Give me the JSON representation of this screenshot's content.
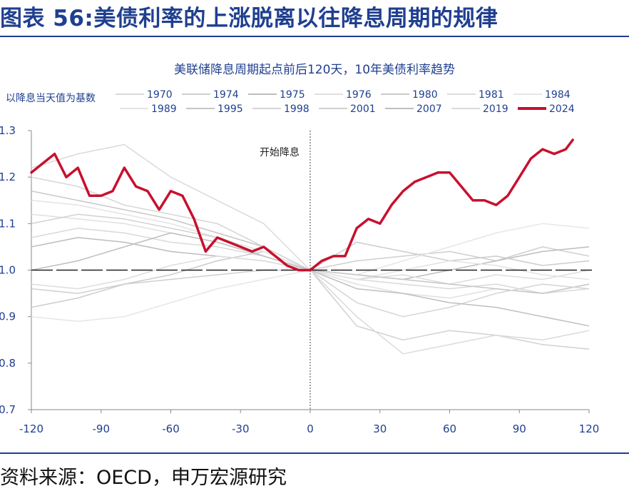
{
  "figure": {
    "title": "图表 56:美债利率的上涨脱离以往降息周期的规律",
    "source": "资料来源：OECD，申万宏源研究"
  },
  "colors": {
    "title_blue": "#1f3f8f",
    "axis_text": "#1f3f8f",
    "highlight": "#c8102e",
    "history": "#d2d2d2"
  },
  "chart_data": {
    "type": "line",
    "title": "美联储降息周期起点前后120天，10年美债利率趋势",
    "legend_note": "以降息当天值为基数",
    "annotation": "开始降息",
    "xlabel": "",
    "ylabel": "",
    "xlim": [
      -120,
      120
    ],
    "ylim": [
      0.7,
      1.3
    ],
    "xticks": [
      -120,
      -90,
      -60,
      -30,
      0,
      30,
      60,
      90,
      120
    ],
    "yticks": [
      0.7,
      0.8,
      0.9,
      1.0,
      1.1,
      1.2,
      1.3
    ],
    "xtick_labels": [
      "-120",
      "-90",
      "-60",
      "-30",
      "0",
      "30",
      "60",
      "90",
      "120"
    ],
    "ytick_labels": [
      "0.7",
      "0.8",
      "0.9",
      "1.0",
      "1.1",
      "1.2",
      "1.3"
    ],
    "baseline": 1.0,
    "series": [
      {
        "name": "1970",
        "color": "#d9d9d9",
        "x": [
          -120,
          -100,
          -80,
          -60,
          -40,
          -20,
          0,
          20,
          40,
          60,
          80,
          100,
          120
        ],
        "values": [
          1.07,
          1.09,
          1.08,
          1.06,
          1.05,
          1.03,
          1.0,
          0.98,
          0.97,
          0.96,
          0.97,
          0.95,
          0.96
        ]
      },
      {
        "name": "1974",
        "color": "#cfcfcf",
        "x": [
          -120,
          -100,
          -80,
          -60,
          -40,
          -20,
          0,
          20,
          40,
          60,
          80,
          100,
          120
        ],
        "values": [
          0.96,
          0.95,
          0.97,
          0.98,
          0.99,
          1.0,
          1.0,
          1.02,
          1.03,
          1.04,
          1.02,
          1.05,
          1.03
        ]
      },
      {
        "name": "1975",
        "color": "#bdbdbd",
        "x": [
          -120,
          -100,
          -80,
          -60,
          -40,
          -20,
          0,
          20,
          40,
          60,
          80,
          100,
          120
        ],
        "values": [
          1.05,
          1.07,
          1.06,
          1.04,
          1.03,
          1.02,
          1.0,
          0.99,
          0.98,
          1.0,
          1.02,
          1.04,
          1.05
        ]
      },
      {
        "name": "1976",
        "color": "#e0e0e0",
        "x": [
          -120,
          -100,
          -80,
          -60,
          -40,
          -20,
          0,
          20,
          40,
          60,
          80,
          100,
          120
        ],
        "values": [
          1.12,
          1.11,
          1.1,
          1.08,
          1.06,
          1.03,
          1.0,
          0.97,
          0.95,
          0.94,
          0.96,
          0.95,
          0.97
        ]
      },
      {
        "name": "1980",
        "color": "#cccccc",
        "x": [
          -120,
          -100,
          -80,
          -60,
          -40,
          -20,
          0,
          20,
          40,
          60,
          80,
          100,
          120
        ],
        "values": [
          0.92,
          0.94,
          0.97,
          0.99,
          1.02,
          1.04,
          1.0,
          1.06,
          1.04,
          1.02,
          1.03,
          1.01,
          1.02
        ]
      },
      {
        "name": "1981",
        "color": "#dddddd",
        "x": [
          -120,
          -100,
          -80,
          -60,
          -40,
          -20,
          0,
          20,
          40,
          60,
          80,
          100,
          120
        ],
        "values": [
          0.97,
          0.96,
          0.98,
          1.01,
          1.03,
          1.02,
          1.0,
          0.98,
          0.99,
          0.97,
          0.99,
          0.98,
          1.0
        ]
      },
      {
        "name": "1984",
        "color": "#e6e6e6",
        "x": [
          -120,
          -100,
          -80,
          -60,
          -40,
          -20,
          0,
          20,
          40,
          60,
          80,
          100,
          120
        ],
        "values": [
          0.9,
          0.89,
          0.9,
          0.93,
          0.96,
          0.98,
          1.0,
          0.99,
          1.02,
          1.05,
          1.08,
          1.1,
          1.09
        ]
      },
      {
        "name": "1989",
        "color": "#e3e3e3",
        "x": [
          -120,
          -100,
          -80,
          -60,
          -40,
          -20,
          0,
          20,
          40,
          60,
          80,
          100,
          120
        ],
        "values": [
          1.15,
          1.14,
          1.12,
          1.1,
          1.07,
          1.04,
          1.0,
          0.98,
          1.0,
          1.02,
          1.01,
          0.99,
          0.98
        ]
      },
      {
        "name": "1995",
        "color": "#c6c6c6",
        "x": [
          -120,
          -100,
          -80,
          -60,
          -40,
          -20,
          0,
          20,
          40,
          60,
          80,
          100,
          120
        ],
        "values": [
          1.17,
          1.15,
          1.13,
          1.11,
          1.08,
          1.05,
          1.0,
          0.99,
          0.98,
          0.97,
          0.96,
          0.95,
          0.97
        ]
      },
      {
        "name": "1998",
        "color": "#d5d5d5",
        "x": [
          -120,
          -100,
          -80,
          -60,
          -40,
          -20,
          0,
          20,
          40,
          60,
          80,
          100,
          120
        ],
        "values": [
          1.2,
          1.18,
          1.14,
          1.12,
          1.1,
          1.05,
          1.0,
          0.93,
          0.9,
          0.92,
          0.95,
          0.97,
          0.96
        ]
      },
      {
        "name": "2001",
        "color": "#d0d0d0",
        "x": [
          -120,
          -100,
          -80,
          -60,
          -40,
          -20,
          0,
          20,
          40,
          60,
          80,
          100,
          120
        ],
        "values": [
          1.1,
          1.12,
          1.11,
          1.09,
          1.07,
          1.03,
          1.0,
          0.88,
          0.85,
          0.87,
          0.86,
          0.84,
          0.83
        ]
      },
      {
        "name": "2007",
        "color": "#bfbfbf",
        "x": [
          -120,
          -100,
          -80,
          -60,
          -40,
          -20,
          0,
          20,
          40,
          60,
          80,
          100,
          120
        ],
        "values": [
          1.0,
          1.02,
          1.05,
          1.08,
          1.06,
          1.03,
          1.0,
          0.96,
          0.95,
          0.93,
          0.92,
          0.9,
          0.88
        ]
      },
      {
        "name": "2019",
        "color": "#dadada",
        "x": [
          -120,
          -100,
          -80,
          -60,
          -40,
          -20,
          0,
          20,
          40,
          60,
          80,
          100,
          120
        ],
        "values": [
          1.22,
          1.25,
          1.27,
          1.2,
          1.15,
          1.1,
          1.0,
          0.9,
          0.82,
          0.84,
          0.86,
          0.85,
          0.87
        ]
      },
      {
        "name": "2024",
        "color": "#c8102e",
        "x": [
          -120,
          -115,
          -110,
          -105,
          -100,
          -95,
          -90,
          -85,
          -80,
          -75,
          -70,
          -65,
          -60,
          -55,
          -50,
          -45,
          -40,
          -35,
          -30,
          -25,
          -20,
          -15,
          -10,
          -5,
          0,
          5,
          10,
          15,
          20,
          25,
          30,
          35,
          40,
          45,
          50,
          55,
          60,
          65,
          70,
          75,
          80,
          85,
          90,
          95,
          100,
          105,
          110,
          113
        ],
        "values": [
          1.21,
          1.23,
          1.25,
          1.2,
          1.22,
          1.16,
          1.16,
          1.17,
          1.22,
          1.18,
          1.17,
          1.13,
          1.17,
          1.16,
          1.11,
          1.04,
          1.07,
          1.06,
          1.05,
          1.04,
          1.05,
          1.03,
          1.01,
          1.0,
          1.0,
          1.02,
          1.03,
          1.03,
          1.09,
          1.11,
          1.1,
          1.14,
          1.17,
          1.19,
          1.2,
          1.21,
          1.21,
          1.18,
          1.15,
          1.15,
          1.14,
          1.16,
          1.2,
          1.24,
          1.26,
          1.25,
          1.26,
          1.28
        ]
      }
    ]
  }
}
